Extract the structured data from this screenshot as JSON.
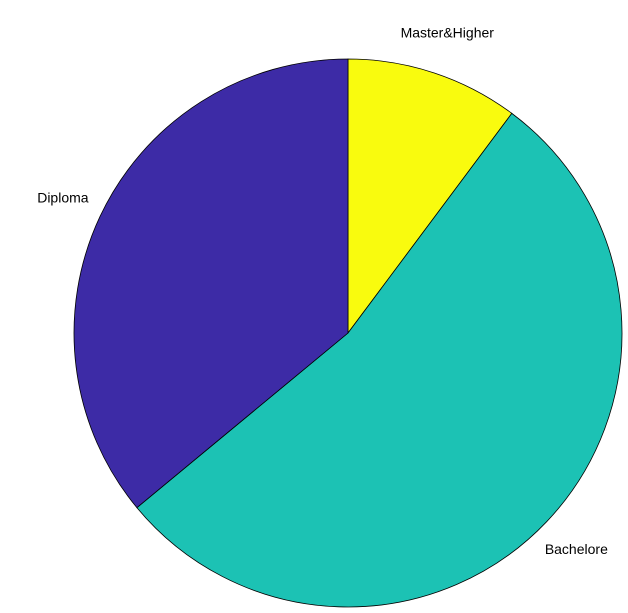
{
  "chart_data": {
    "type": "pie",
    "categories": [
      "Master&Higher",
      "Bachelore",
      "Diploma"
    ],
    "values": [
      10.2,
      53.8,
      36.0
    ],
    "colors": [
      "#f9fb0e",
      "#1cc2b4",
      "#3d2ba6"
    ]
  }
}
